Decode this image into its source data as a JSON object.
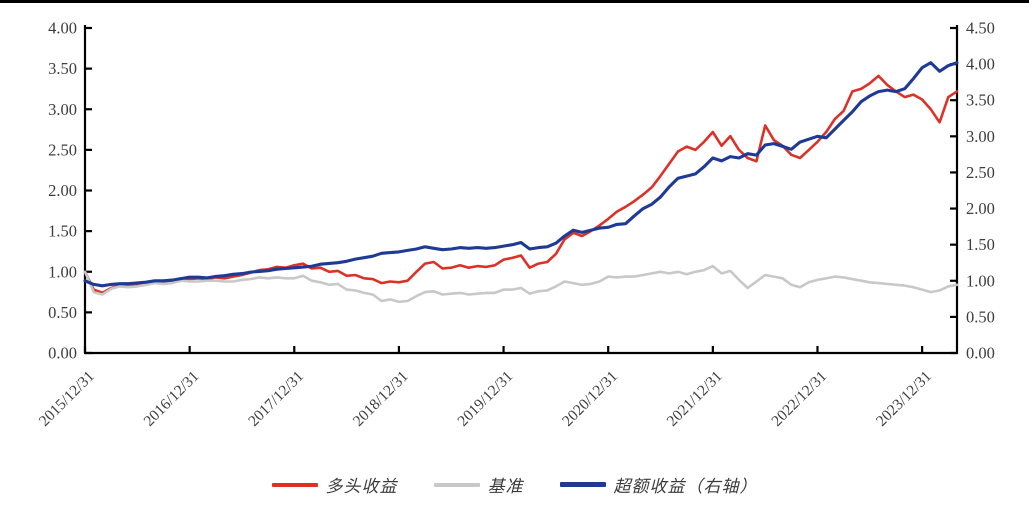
{
  "page": {
    "background": "#ffffff",
    "top_border_color": "#000000"
  },
  "legend": {
    "items": [
      {
        "label": "多头收益",
        "color": "#dd3127"
      },
      {
        "label": "基准",
        "color": "#c8c8c8"
      },
      {
        "label": "超额收益（右轴）",
        "color": "#1f3a96"
      }
    ]
  },
  "chart_data": {
    "type": "line",
    "title": "",
    "xlabel": "",
    "ylabel_left": "",
    "ylabel_right": "",
    "grid": false,
    "legend_position": "bottom",
    "x_start": "2015/12/31",
    "x_frequency": "monthly",
    "x_tick_labels": [
      {
        "label": "2015/12/31",
        "index": 0
      },
      {
        "label": "2016/12/31",
        "index": 12
      },
      {
        "label": "2017/12/31",
        "index": 24
      },
      {
        "label": "2018/12/31",
        "index": 36
      },
      {
        "label": "2019/12/31",
        "index": 48
      },
      {
        "label": "2020/12/31",
        "index": 60
      },
      {
        "label": "2021/12/31",
        "index": 72
      },
      {
        "label": "2022/12/31",
        "index": 84
      },
      {
        "label": "2023/12/31",
        "index": 96
      }
    ],
    "axes": {
      "left": {
        "min": 0,
        "max": 4.0,
        "tick_step": 0.5,
        "ticks": [
          "0.00",
          "0.50",
          "1.00",
          "1.50",
          "2.00",
          "2.50",
          "3.00",
          "3.50",
          "4.00"
        ]
      },
      "right": {
        "min": 0,
        "max": 4.5,
        "tick_step": 0.5,
        "ticks": [
          "0.00",
          "0.50",
          "1.00",
          "1.50",
          "2.00",
          "2.50",
          "3.00",
          "3.50",
          "4.00",
          "4.50"
        ]
      }
    },
    "series": [
      {
        "name": "多头收益",
        "axis": "left",
        "color": "#dd3127",
        "width": 2.6,
        "values": [
          1.0,
          0.78,
          0.74,
          0.8,
          0.83,
          0.82,
          0.84,
          0.86,
          0.88,
          0.87,
          0.89,
          0.92,
          0.91,
          0.92,
          0.91,
          0.93,
          0.92,
          0.94,
          0.96,
          0.99,
          1.02,
          1.03,
          1.06,
          1.05,
          1.08,
          1.1,
          1.04,
          1.05,
          1.0,
          1.01,
          0.95,
          0.96,
          0.92,
          0.91,
          0.86,
          0.88,
          0.87,
          0.89,
          1.0,
          1.1,
          1.12,
          1.04,
          1.05,
          1.08,
          1.05,
          1.07,
          1.06,
          1.08,
          1.15,
          1.17,
          1.2,
          1.05,
          1.1,
          1.12,
          1.22,
          1.4,
          1.48,
          1.44,
          1.5,
          1.57,
          1.65,
          1.74,
          1.8,
          1.87,
          1.95,
          2.04,
          2.18,
          2.33,
          2.48,
          2.54,
          2.5,
          2.6,
          2.72,
          2.55,
          2.67,
          2.5,
          2.4,
          2.36,
          2.8,
          2.62,
          2.55,
          2.44,
          2.4,
          2.5,
          2.6,
          2.72,
          2.88,
          2.98,
          3.22,
          3.25,
          3.32,
          3.41,
          3.3,
          3.22,
          3.15,
          3.18,
          3.12,
          3.0,
          2.84,
          3.15,
          3.22
        ]
      },
      {
        "name": "基准",
        "axis": "left",
        "color": "#c8c8c8",
        "width": 2.6,
        "values": [
          1.0,
          0.75,
          0.72,
          0.79,
          0.82,
          0.81,
          0.82,
          0.84,
          0.86,
          0.85,
          0.86,
          0.89,
          0.88,
          0.88,
          0.89,
          0.89,
          0.88,
          0.88,
          0.9,
          0.91,
          0.93,
          0.92,
          0.93,
          0.92,
          0.92,
          0.95,
          0.89,
          0.87,
          0.84,
          0.85,
          0.78,
          0.77,
          0.74,
          0.72,
          0.64,
          0.66,
          0.63,
          0.64,
          0.7,
          0.75,
          0.76,
          0.72,
          0.73,
          0.74,
          0.72,
          0.73,
          0.74,
          0.74,
          0.78,
          0.78,
          0.8,
          0.73,
          0.76,
          0.77,
          0.82,
          0.88,
          0.86,
          0.84,
          0.85,
          0.88,
          0.94,
          0.93,
          0.94,
          0.94,
          0.96,
          0.98,
          1.0,
          0.98,
          1.0,
          0.97,
          1.0,
          1.02,
          1.07,
          0.98,
          1.01,
          0.9,
          0.8,
          0.88,
          0.96,
          0.94,
          0.92,
          0.84,
          0.81,
          0.87,
          0.9,
          0.92,
          0.94,
          0.93,
          0.91,
          0.89,
          0.87,
          0.86,
          0.85,
          0.84,
          0.83,
          0.81,
          0.78,
          0.75,
          0.77,
          0.82,
          0.84
        ]
      },
      {
        "name": "超额收益（右轴）",
        "axis": "right",
        "color": "#1f3a96",
        "width": 3.1,
        "values": [
          1.0,
          0.95,
          0.93,
          0.95,
          0.96,
          0.96,
          0.97,
          0.98,
          1.0,
          1.0,
          1.01,
          1.03,
          1.05,
          1.05,
          1.04,
          1.06,
          1.07,
          1.09,
          1.1,
          1.12,
          1.13,
          1.14,
          1.16,
          1.17,
          1.18,
          1.19,
          1.2,
          1.23,
          1.24,
          1.25,
          1.27,
          1.3,
          1.32,
          1.34,
          1.38,
          1.39,
          1.4,
          1.42,
          1.44,
          1.47,
          1.45,
          1.43,
          1.44,
          1.46,
          1.45,
          1.46,
          1.45,
          1.46,
          1.48,
          1.5,
          1.53,
          1.44,
          1.46,
          1.47,
          1.52,
          1.62,
          1.7,
          1.67,
          1.7,
          1.73,
          1.74,
          1.78,
          1.79,
          1.9,
          2.0,
          2.06,
          2.16,
          2.3,
          2.42,
          2.45,
          2.48,
          2.58,
          2.7,
          2.66,
          2.72,
          2.7,
          2.76,
          2.74,
          2.88,
          2.9,
          2.86,
          2.82,
          2.92,
          2.96,
          3.0,
          2.98,
          3.1,
          3.22,
          3.34,
          3.48,
          3.56,
          3.62,
          3.64,
          3.62,
          3.66,
          3.8,
          3.95,
          4.02,
          3.9,
          3.98,
          4.02
        ]
      }
    ]
  }
}
